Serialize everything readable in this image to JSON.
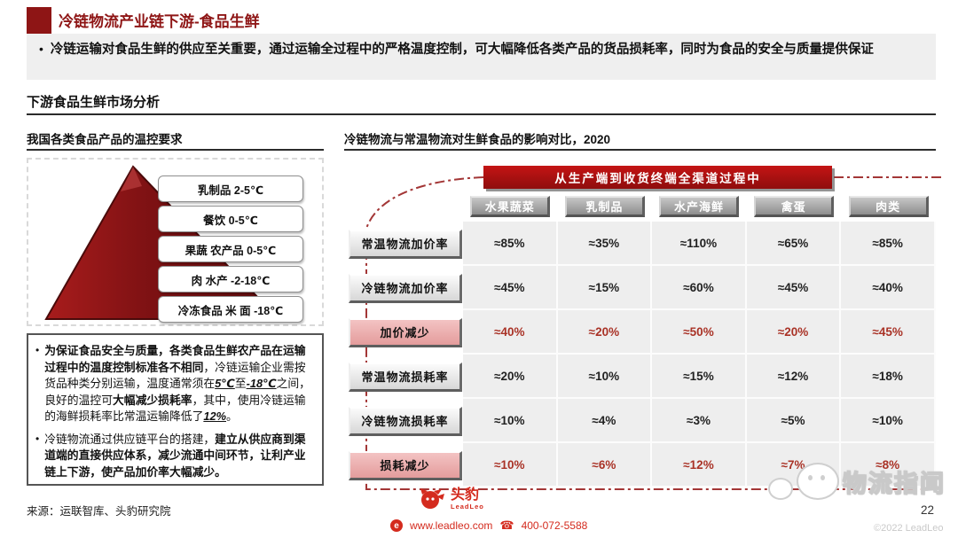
{
  "page": {
    "title": "冷链物流产业链下游-食品生鲜",
    "summary": "冷链运输对食品生鲜的供应至关重要，通过运输全过程中的严格温度控制，可大幅降低各类产品的货品损耗率，同时为食品的安全与质量提供保证",
    "section_title": "下游食品生鲜市场分析",
    "page_number": "22",
    "copyright": "©2022 LeadLeo",
    "watermark": "物流指闻"
  },
  "left_panel": {
    "title": "我国各类食品产品的温控要求",
    "pyramid_labels": [
      "乳制品 2-5℃",
      "餐饮 0-5℃",
      "果蔬 农产品 0-5℃",
      "肉 水产 -2-18℃",
      "冷冻食品 米 面 -18℃"
    ],
    "notes": [
      [
        {
          "t": "为保证食品安全与质量，各类食品生鲜农产品在运输过程中的温度控制标准各不相同",
          "b": true
        },
        {
          "t": "，冷链运输企业需按货品种类分别运输，温度通常须在",
          "b": false
        },
        {
          "t": "5℃",
          "b": true,
          "u": true
        },
        {
          "t": "至",
          "b": false
        },
        {
          "t": "-18℃",
          "b": true,
          "u": true
        },
        {
          "t": "之间，良好的温控可",
          "b": false
        },
        {
          "t": "大幅减少损耗率",
          "b": true
        },
        {
          "t": "，其中，使用冷链运输的海鲜损耗率比常温运输降低了",
          "b": false
        },
        {
          "t": "12%",
          "b": true,
          "u": true
        },
        {
          "t": "。",
          "b": false
        }
      ],
      [
        {
          "t": "冷链物流通过供应链平台的搭建，",
          "b": false
        },
        {
          "t": "建立从供应商到渠道端的直接供应体系，减少流通中间环节，让利产业链上下游，使产品加价率大幅减少。",
          "b": true
        }
      ]
    ],
    "source": "来源：运联智库、头豹研究院"
  },
  "right_panel": {
    "title": "冷链物流与常温物流对生鲜食品的影响对比，2020",
    "banner": "从生产端到收货终端全渠道过程中",
    "columns": [
      "水果蔬菜",
      "乳制品",
      "水产海鲜",
      "禽蛋",
      "肉类"
    ],
    "rows": [
      {
        "label": "常温物流加价率",
        "highlight": false,
        "values": [
          "≈85%",
          "≈35%",
          "≈110%",
          "≈65%",
          "≈85%"
        ]
      },
      {
        "label": "冷链物流加价率",
        "highlight": false,
        "values": [
          "≈45%",
          "≈15%",
          "≈60%",
          "≈45%",
          "≈40%"
        ]
      },
      {
        "label": "加价减少",
        "highlight": true,
        "values": [
          "≈40%",
          "≈20%",
          "≈50%",
          "≈20%",
          "≈45%"
        ]
      },
      {
        "label": "常温物流损耗率",
        "highlight": false,
        "values": [
          "≈20%",
          "≈10%",
          "≈15%",
          "≈12%",
          "≈18%"
        ]
      },
      {
        "label": "冷链物流损耗率",
        "highlight": false,
        "values": [
          "≈10%",
          "≈4%",
          "≈3%",
          "≈5%",
          "≈10%"
        ]
      },
      {
        "label": "损耗减少",
        "highlight": true,
        "values": [
          "≈10%",
          "≈6%",
          "≈12%",
          "≈7%",
          "≈8%"
        ]
      }
    ]
  },
  "footer": {
    "logo_cn": "头豹",
    "logo_en": "LeadLeo",
    "website": "www.leadleo.com",
    "phone": "400-072-5588"
  },
  "colors": {
    "accent_red": "#8e1515",
    "banner_red": "#b01212",
    "highlight_pink": "#e49c9c",
    "value_red": "#a93226",
    "cell_bg": "#eeeeee"
  }
}
